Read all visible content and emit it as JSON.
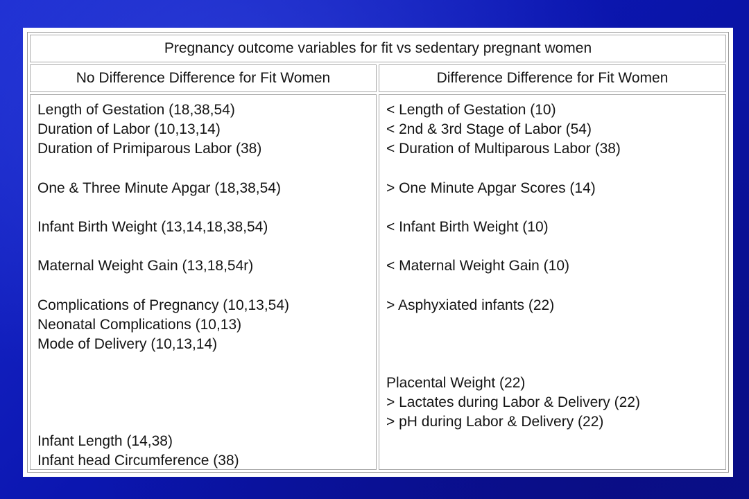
{
  "table": {
    "title": "Pregnancy outcome variables for fit vs sedentary pregnant women",
    "left_header": "No Difference Difference for Fit Women",
    "right_header": "Difference Difference for Fit Women",
    "left_items": [
      "Length of Gestation (18,38,54)",
      "Duration of Labor (10,13,14)",
      "Duration of Primiparous Labor (38)",
      "One & Three Minute Apgar (18,38,54)",
      "Infant Birth Weight (13,14,18,38,54)",
      "Maternal Weight Gain (13,18,54r)",
      "Complications of Pregnancy (10,13,54)",
      "Neonatal Complications (10,13)",
      "Mode of Delivery (10,13,14)",
      "Infant Length (14,38)",
      "Infant head Circumference (38)"
    ],
    "right_items": [
      "< Length of Gestation (10)",
      "< 2nd & 3rd Stage of Labor (54)",
      "< Duration of Multiparous Labor (38)",
      "> One Minute Apgar Scores (14)",
      "< Infant Birth Weight (10)",
      "< Maternal Weight Gain (10)",
      "> Asphyxiated infants (22)",
      "Placental Weight (22)",
      "> Lactates during Labor & Delivery (22)",
      "> pH during Labor & Delivery (22)"
    ]
  }
}
